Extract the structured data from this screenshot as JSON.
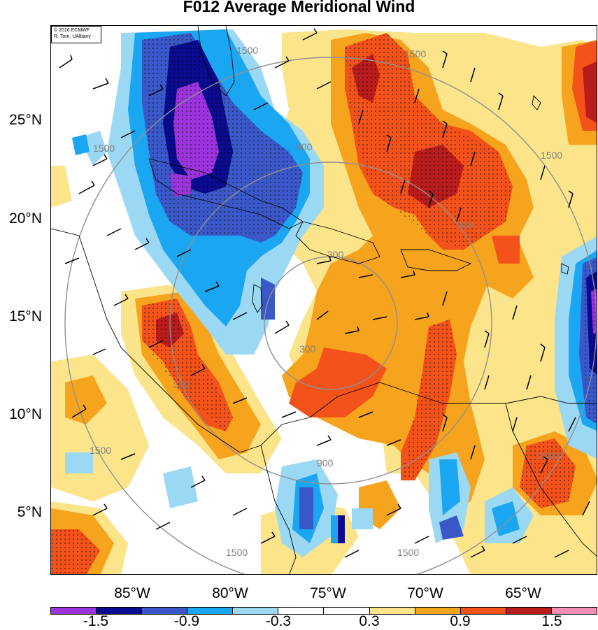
{
  "title": "F012 Average Meridional Wind",
  "credit": {
    "line1": "© 2016 ECMWF",
    "line2": "R. Torn, UAlbany"
  },
  "lat_labels": [
    "25°N",
    "20°N",
    "15°N",
    "10°N",
    "5°N"
  ],
  "lon_labels": [
    "85°W",
    "80°W",
    "75°W",
    "70°W",
    "65°W"
  ],
  "range_ring_labels": [
    "300",
    "900",
    "1500"
  ],
  "colorbar": {
    "colors": [
      "#9b34dc",
      "#0a0b8e",
      "#3a58c8",
      "#1aa6f0",
      "#9bd8f4",
      "#ffffff",
      "#ffffff",
      "#fbe48a",
      "#f6a31e",
      "#f3521a",
      "#b81c1c",
      "#f58fb6"
    ],
    "labels": [
      "-1.5",
      "-0.9",
      "-0.3",
      "0.3",
      "0.9",
      "1.5"
    ]
  },
  "colors": {
    "purple": "#9b34dc",
    "navy": "#0a0b8e",
    "blue": "#3a58c8",
    "cyan": "#1aa6f0",
    "lightblue": "#9bd8f4",
    "yellow": "#fbe48a",
    "orange": "#f6a31e",
    "redorange": "#f3521a",
    "darkred": "#b81c1c",
    "pink": "#f58fb6"
  }
}
